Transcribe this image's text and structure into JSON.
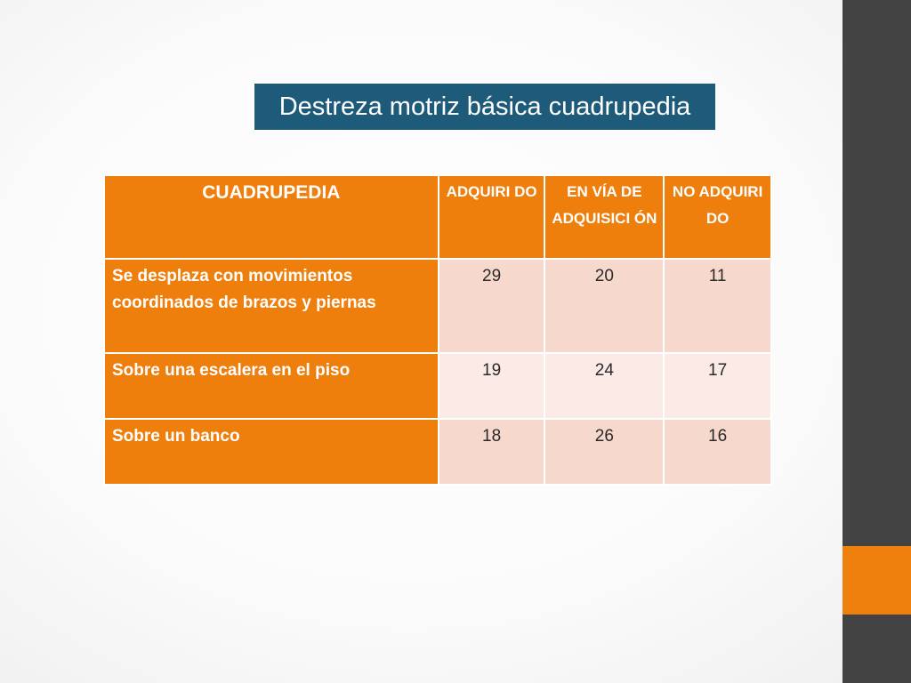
{
  "title": "Destreza motriz básica cuadrupedia",
  "table": {
    "headers": [
      "CUADRUPEDIA",
      "ADQUIRI DO",
      "EN VÍA DE ADQUISICI ÓN",
      "NO ADQUIRI DO"
    ],
    "rows": [
      {
        "label": "Se desplaza con movimientos coordinados de brazos y piernas",
        "values": [
          "29",
          "20",
          "11"
        ]
      },
      {
        "label": "Sobre una escalera en el piso",
        "values": [
          "19",
          "24",
          "17"
        ]
      },
      {
        "label": "Sobre un banco",
        "values": [
          "18",
          "26",
          "16"
        ]
      }
    ]
  },
  "colors": {
    "accent": "#ef7f0d",
    "title_background": "#1e5b7a",
    "side_bar": "#434343",
    "cell_light": "#f7d8cd",
    "cell_lighter": "#fbeae6"
  }
}
